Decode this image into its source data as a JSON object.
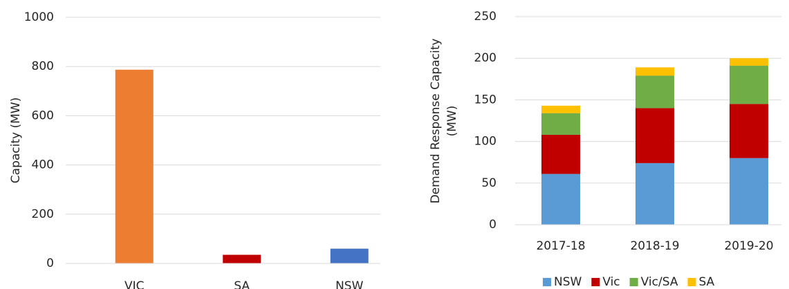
{
  "chart_data": [
    {
      "type": "bar",
      "y_label": "Capacity (MW)",
      "categories": [
        "VIC",
        "SA",
        "NSW"
      ],
      "values": [
        787,
        35,
        60
      ],
      "colors": [
        "#ED7D31",
        "#C00000",
        "#4472C4"
      ],
      "ylim": [
        0,
        1000
      ],
      "yticks": [
        0,
        200,
        400,
        600,
        800,
        1000
      ],
      "grid": true
    },
    {
      "type": "stacked_bar",
      "y_label": "Demand Response Capacity (MW)",
      "categories": [
        "2017-18",
        "2018-19",
        "2019-20"
      ],
      "series": [
        {
          "name": "NSW",
          "color": "#5B9BD5",
          "values": [
            61,
            74,
            80
          ]
        },
        {
          "name": "Vic",
          "color": "#C00000",
          "values": [
            47,
            66,
            65
          ]
        },
        {
          "name": "Vic/SA",
          "color": "#70AD47",
          "values": [
            26,
            39,
            46
          ]
        },
        {
          "name": "SA",
          "color": "#FFC000",
          "values": [
            9,
            10,
            9
          ]
        }
      ],
      "ylim": [
        0,
        250
      ],
      "yticks": [
        0,
        50,
        100,
        150,
        200,
        250
      ],
      "grid": true,
      "legend": "bottom"
    }
  ]
}
